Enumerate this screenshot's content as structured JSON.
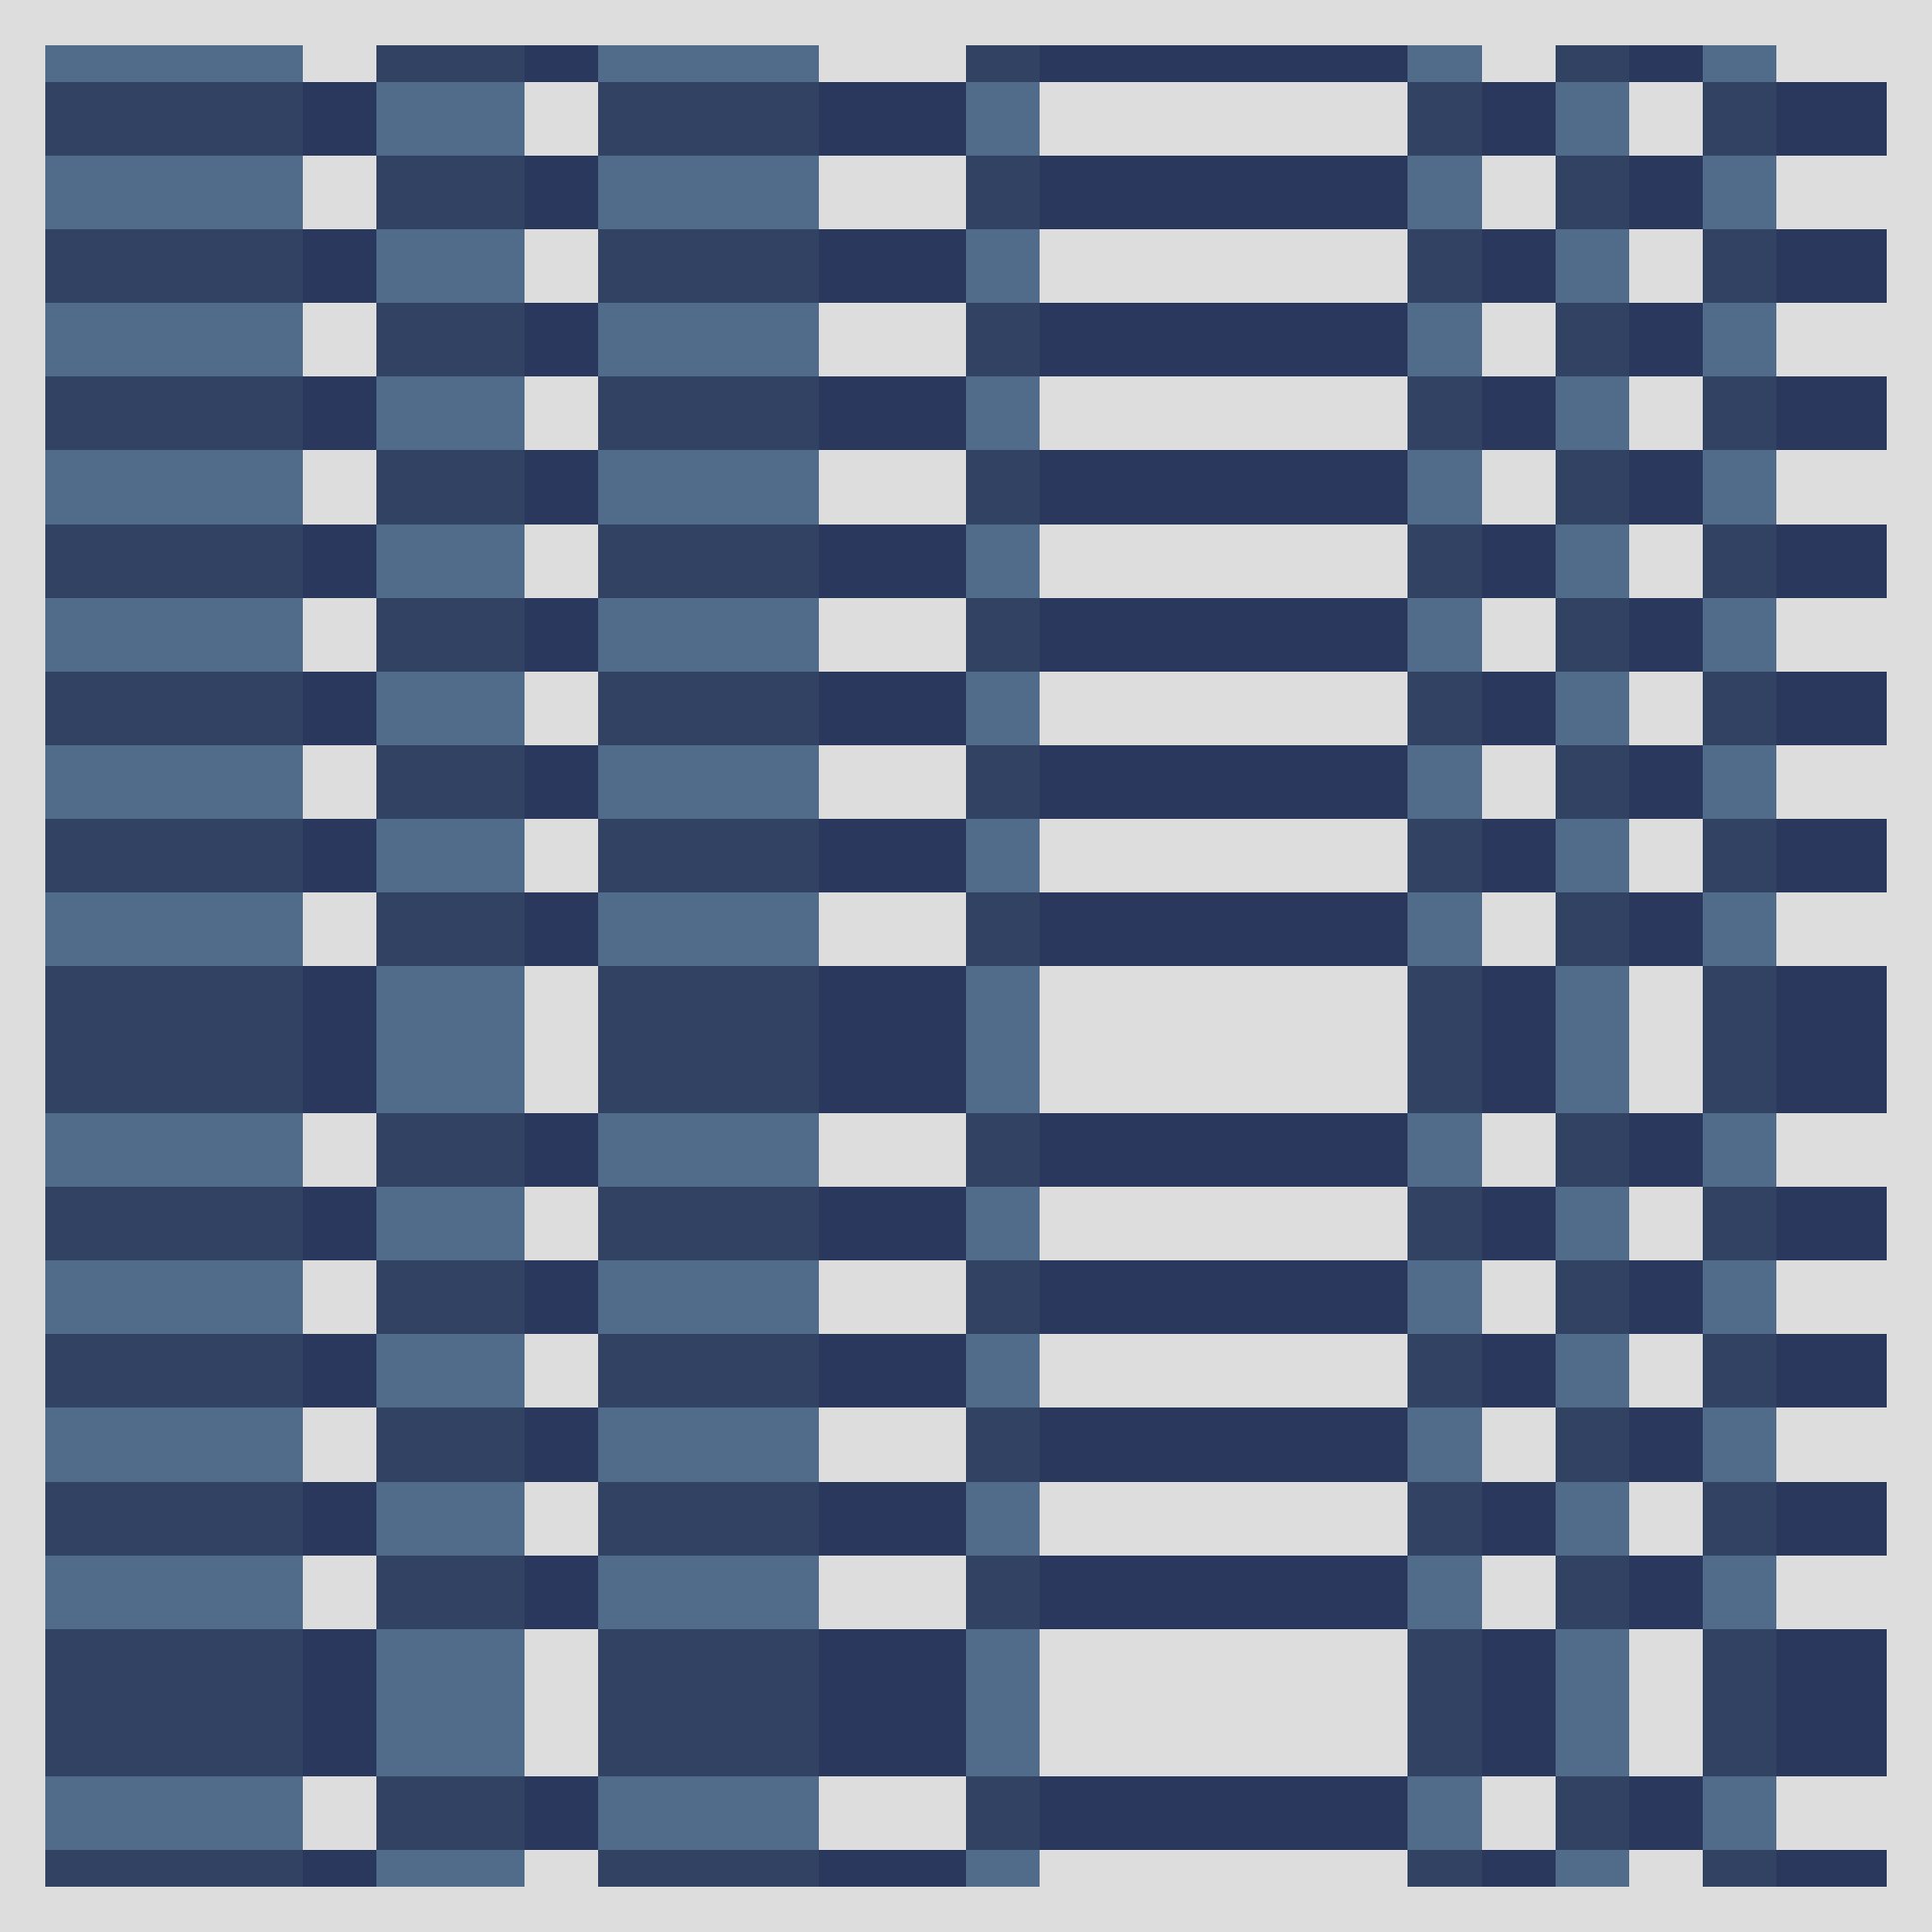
{
  "colors": {
    "background": "#dddddd",
    "light_blue": "#516b8b",
    "mid_navy": "#314263",
    "dark_navy": "#29385c"
  },
  "pattern": {
    "row_a": [
      "light_blue",
      "background",
      "mid_navy",
      "dark_navy",
      "light_blue",
      "background",
      "mid_navy",
      "dark_navy",
      "light_blue",
      "background",
      "mid_navy",
      "dark_navy",
      "light_blue",
      "background"
    ],
    "row_b": [
      "mid_navy",
      "dark_navy",
      "light_blue",
      "background",
      "mid_navy",
      "dark_navy",
      "light_blue",
      "background",
      "mid_navy",
      "dark_navy",
      "light_blue",
      "background",
      "mid_navy",
      "dark_navy"
    ],
    "row_sequence": [
      "A",
      "B",
      "A",
      "B",
      "A",
      "B",
      "A",
      "B",
      "A",
      "B",
      "A",
      "B",
      "A",
      "B",
      "A",
      "B",
      "A",
      "B",
      "A",
      "B",
      "A",
      "B",
      "A",
      "B"
    ]
  }
}
